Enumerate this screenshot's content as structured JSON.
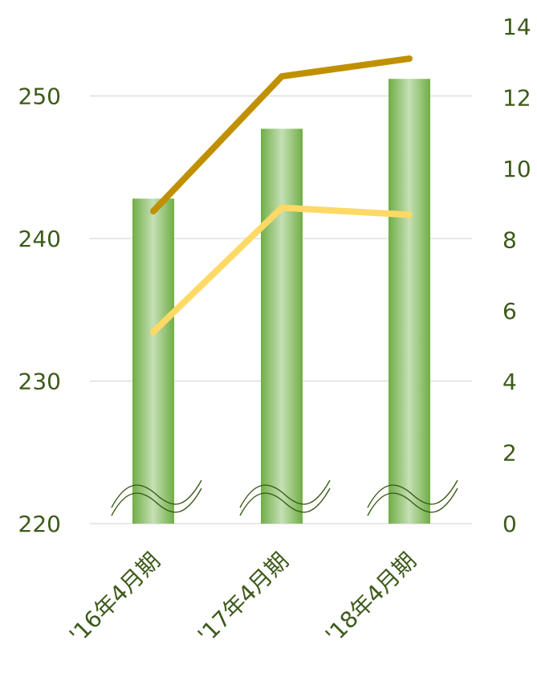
{
  "chart_data": {
    "type": "bar",
    "categories": [
      "'16年4月期",
      "'17年4月期",
      "'18年4月期"
    ],
    "series": [
      {
        "type": "bar",
        "axis": "left",
        "values": [
          242.8,
          247.7,
          251.2
        ]
      },
      {
        "type": "line",
        "axis": "right",
        "color": "#c09000",
        "values": [
          8.8,
          12.6,
          13.1
        ]
      },
      {
        "type": "line",
        "axis": "right",
        "color": "#ffd966",
        "values": [
          5.4,
          8.9,
          8.7
        ]
      }
    ],
    "y_left": {
      "ylim": [
        220,
        255
      ],
      "ticks": [
        "220",
        "230",
        "240",
        "250"
      ]
    },
    "y_right": {
      "ylim": [
        0,
        14
      ],
      "ticks": [
        "0",
        "2",
        "4",
        "6",
        "8",
        "10",
        "12",
        "14"
      ]
    },
    "axis_break": true,
    "grid": true,
    "colors": {
      "bar_edge": "#70ad47",
      "bar_center": "#c5e0b4",
      "text": "#3d5a1a",
      "gridline": "#d9d9d9",
      "break_line": "#3d5a1a"
    }
  }
}
